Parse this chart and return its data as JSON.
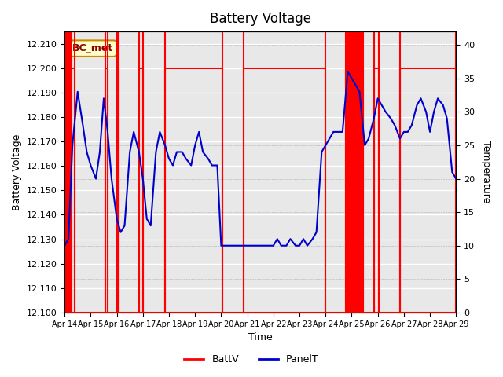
{
  "title": "Battery Voltage",
  "xlabel": "Time",
  "ylabel_left": "Battery Voltage",
  "ylabel_right": "Temperature",
  "annotation_text": "BC_met",
  "xlim": [
    0,
    15
  ],
  "ylim_left": [
    12.1,
    12.215
  ],
  "ylim_right": [
    0,
    42
  ],
  "yticks_left": [
    12.1,
    12.11,
    12.12,
    12.13,
    12.14,
    12.15,
    12.16,
    12.17,
    12.18,
    12.19,
    12.2,
    12.21
  ],
  "yticks_right": [
    0,
    5,
    10,
    15,
    20,
    25,
    30,
    35,
    40
  ],
  "xtick_labels": [
    "Apr 14",
    "Apr 15",
    "Apr 16",
    "Apr 17",
    "Apr 18",
    "Apr 19",
    "Apr 20",
    "Apr 21",
    "Apr 22",
    "Apr 23",
    "Apr 24",
    "Apr 25",
    "Apr 26",
    "Apr 27",
    "Apr 28",
    "Apr 29"
  ],
  "xtick_positions": [
    0,
    1,
    2,
    3,
    4,
    5,
    6,
    7,
    8,
    9,
    10,
    11,
    12,
    13,
    14,
    15
  ],
  "background_color": "#ffffff",
  "plot_bg_color": "#e8e8e8",
  "grid_color": "#ffffff",
  "red_color": "#ff0000",
  "blue_color": "#0000cc",
  "annotation_bg": "#ffffcc",
  "annotation_border": "#cc8800",
  "red_rect_intervals": [
    [
      0.0,
      0.07
    ],
    [
      0.12,
      0.16
    ],
    [
      0.2,
      0.24
    ],
    [
      0.28,
      0.38
    ],
    [
      1.55,
      1.65
    ],
    [
      2.0,
      2.06
    ],
    [
      2.85,
      3.0
    ],
    [
      3.85,
      6.05
    ],
    [
      6.85,
      10.0
    ],
    [
      10.78,
      10.84
    ],
    [
      10.88,
      10.94
    ],
    [
      10.98,
      11.04
    ],
    [
      11.08,
      11.14
    ],
    [
      11.18,
      11.24
    ],
    [
      11.28,
      11.34
    ],
    [
      11.38,
      11.45
    ],
    [
      11.85,
      12.05
    ],
    [
      12.85,
      15.0
    ]
  ],
  "panel_t_x": [
    0.0,
    0.15,
    0.3,
    0.5,
    0.7,
    0.85,
    1.0,
    1.1,
    1.2,
    1.35,
    1.5,
    1.65,
    1.8,
    2.0,
    2.15,
    2.3,
    2.5,
    2.65,
    2.85,
    3.0,
    3.15,
    3.3,
    3.5,
    3.65,
    3.85,
    4.0,
    4.15,
    4.3,
    4.5,
    4.65,
    4.85,
    5.0,
    5.15,
    5.3,
    5.5,
    5.65,
    5.85,
    6.0,
    6.15,
    6.3,
    6.5,
    6.65,
    6.85,
    7.0,
    7.15,
    7.3,
    7.5,
    7.65,
    7.85,
    8.0,
    8.15,
    8.3,
    8.5,
    8.65,
    8.85,
    9.0,
    9.15,
    9.3,
    9.5,
    9.65,
    9.85,
    10.0,
    10.15,
    10.3,
    10.5,
    10.65,
    10.85,
    11.0,
    11.15,
    11.3,
    11.5,
    11.65,
    11.85,
    12.0,
    12.15,
    12.3,
    12.5,
    12.65,
    12.85,
    13.0,
    13.15,
    13.3,
    13.5,
    13.65,
    13.85,
    14.0,
    14.15,
    14.3,
    14.5,
    14.65,
    14.85,
    15.0
  ],
  "panel_t_y": [
    10,
    11,
    25,
    33,
    28,
    24,
    22,
    21,
    20,
    24,
    32,
    27,
    20,
    14,
    12,
    13,
    24,
    27,
    24,
    20,
    14,
    13,
    24,
    27,
    25,
    23,
    22,
    24,
    24,
    23,
    22,
    25,
    27,
    24,
    23,
    22,
    22,
    10,
    10,
    10,
    10,
    10,
    10,
    10,
    10,
    10,
    10,
    10,
    10,
    10,
    11,
    10,
    10,
    11,
    10,
    10,
    11,
    10,
    11,
    12,
    24,
    25,
    26,
    27,
    27,
    27,
    36,
    35,
    34,
    33,
    25,
    26,
    29,
    32,
    31,
    30,
    29,
    28,
    26,
    27,
    27,
    28,
    31,
    32,
    30,
    27,
    30,
    32,
    31,
    29,
    21,
    20
  ]
}
